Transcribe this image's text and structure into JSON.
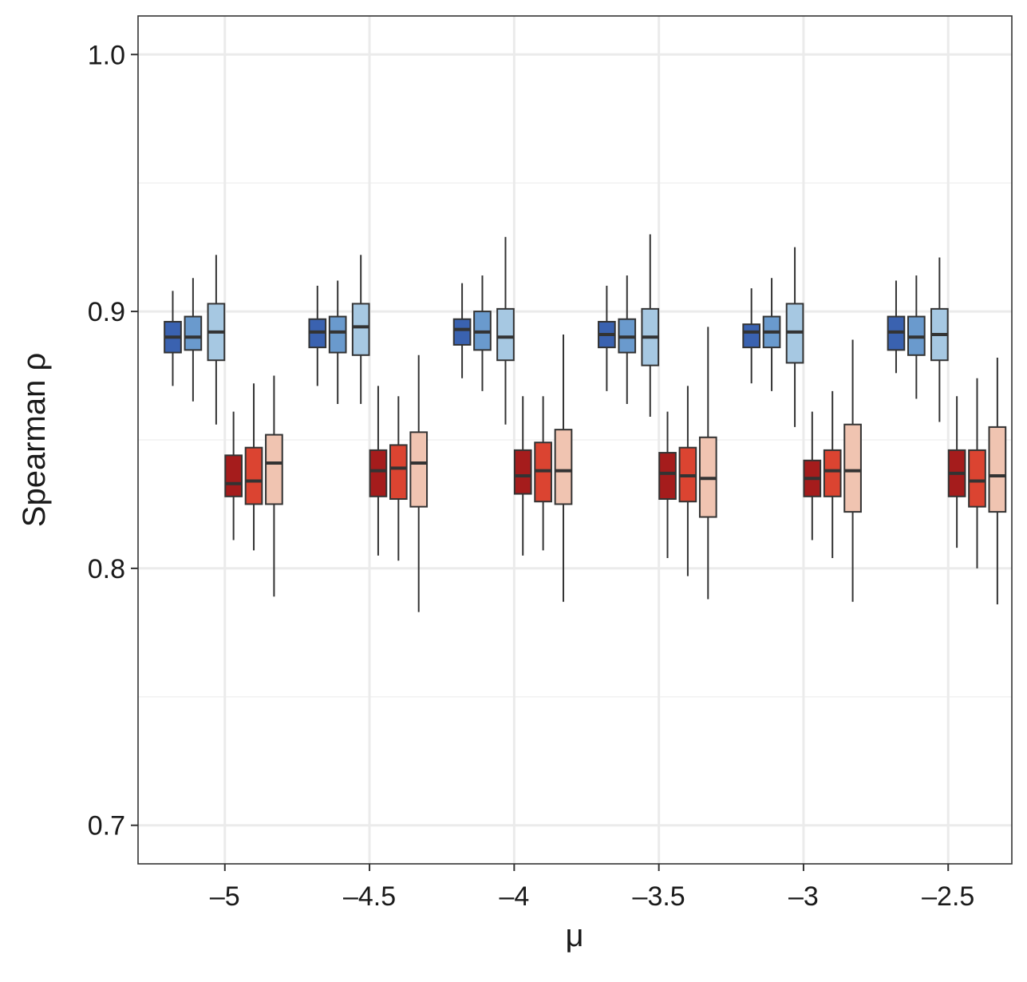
{
  "chart_data": {
    "type": "box",
    "title": "",
    "xlabel": "μ",
    "ylabel": "Spearman ρ",
    "ylim": [
      0.685,
      1.015
    ],
    "xlim": [
      -5.3,
      -2.28
    ],
    "grid": true,
    "legend": "none",
    "x_ticks": [
      -5,
      -4.5,
      -4,
      -3.5,
      -3,
      -2.5
    ],
    "x_tick_labels": [
      "–5",
      "–4.5",
      "–4",
      "–3.5",
      "–3",
      "–2.5"
    ],
    "y_ticks": [
      0.7,
      0.8,
      0.9,
      1.0
    ],
    "y_tick_labels": [
      "0.7",
      "0.8",
      "0.9",
      "1.0"
    ],
    "y_minor_gridlines": [
      0.75,
      0.85,
      0.95
    ],
    "colors": [
      "#3a62b0",
      "#6a9acd",
      "#a6c8e2",
      "#a51c1c",
      "#db4431",
      "#f0c4b1"
    ],
    "box_offsets": [
      -0.18,
      -0.11,
      -0.03,
      0.03,
      0.1,
      0.17
    ],
    "box_width": 0.057,
    "groups": [
      {
        "x": -5,
        "boxes": [
          {
            "whislo": 0.871,
            "q1": 0.884,
            "med": 0.89,
            "q3": 0.896,
            "whishi": 0.908
          },
          {
            "whislo": 0.865,
            "q1": 0.885,
            "med": 0.89,
            "q3": 0.898,
            "whishi": 0.913
          },
          {
            "whislo": 0.856,
            "q1": 0.881,
            "med": 0.892,
            "q3": 0.903,
            "whishi": 0.922
          },
          {
            "whislo": 0.811,
            "q1": 0.828,
            "med": 0.833,
            "q3": 0.844,
            "whishi": 0.861
          },
          {
            "whislo": 0.807,
            "q1": 0.825,
            "med": 0.834,
            "q3": 0.847,
            "whishi": 0.872
          },
          {
            "whislo": 0.789,
            "q1": 0.825,
            "med": 0.841,
            "q3": 0.852,
            "whishi": 0.875
          }
        ]
      },
      {
        "x": -4.5,
        "boxes": [
          {
            "whislo": 0.871,
            "q1": 0.886,
            "med": 0.892,
            "q3": 0.897,
            "whishi": 0.91
          },
          {
            "whislo": 0.864,
            "q1": 0.884,
            "med": 0.892,
            "q3": 0.898,
            "whishi": 0.912
          },
          {
            "whislo": 0.864,
            "q1": 0.883,
            "med": 0.894,
            "q3": 0.903,
            "whishi": 0.922
          },
          {
            "whislo": 0.805,
            "q1": 0.828,
            "med": 0.838,
            "q3": 0.846,
            "whishi": 0.871
          },
          {
            "whislo": 0.803,
            "q1": 0.827,
            "med": 0.839,
            "q3": 0.848,
            "whishi": 0.867
          },
          {
            "whislo": 0.783,
            "q1": 0.824,
            "med": 0.841,
            "q3": 0.853,
            "whishi": 0.883
          }
        ]
      },
      {
        "x": -4,
        "boxes": [
          {
            "whislo": 0.874,
            "q1": 0.887,
            "med": 0.893,
            "q3": 0.897,
            "whishi": 0.911
          },
          {
            "whislo": 0.869,
            "q1": 0.885,
            "med": 0.892,
            "q3": 0.9,
            "whishi": 0.914
          },
          {
            "whislo": 0.856,
            "q1": 0.881,
            "med": 0.89,
            "q3": 0.901,
            "whishi": 0.929
          },
          {
            "whislo": 0.805,
            "q1": 0.829,
            "med": 0.836,
            "q3": 0.846,
            "whishi": 0.867
          },
          {
            "whislo": 0.807,
            "q1": 0.826,
            "med": 0.838,
            "q3": 0.849,
            "whishi": 0.867
          },
          {
            "whislo": 0.787,
            "q1": 0.825,
            "med": 0.838,
            "q3": 0.854,
            "whishi": 0.891
          }
        ]
      },
      {
        "x": -3.5,
        "boxes": [
          {
            "whislo": 0.869,
            "q1": 0.886,
            "med": 0.891,
            "q3": 0.896,
            "whishi": 0.91
          },
          {
            "whislo": 0.864,
            "q1": 0.884,
            "med": 0.89,
            "q3": 0.897,
            "whishi": 0.914
          },
          {
            "whislo": 0.859,
            "q1": 0.879,
            "med": 0.89,
            "q3": 0.901,
            "whishi": 0.93
          },
          {
            "whislo": 0.804,
            "q1": 0.827,
            "med": 0.837,
            "q3": 0.845,
            "whishi": 0.861
          },
          {
            "whislo": 0.797,
            "q1": 0.826,
            "med": 0.836,
            "q3": 0.847,
            "whishi": 0.871
          },
          {
            "whislo": 0.788,
            "q1": 0.82,
            "med": 0.835,
            "q3": 0.851,
            "whishi": 0.894
          }
        ]
      },
      {
        "x": -3,
        "boxes": [
          {
            "whislo": 0.872,
            "q1": 0.886,
            "med": 0.892,
            "q3": 0.895,
            "whishi": 0.909
          },
          {
            "whislo": 0.869,
            "q1": 0.886,
            "med": 0.892,
            "q3": 0.898,
            "whishi": 0.913
          },
          {
            "whislo": 0.855,
            "q1": 0.88,
            "med": 0.892,
            "q3": 0.903,
            "whishi": 0.925
          },
          {
            "whislo": 0.811,
            "q1": 0.828,
            "med": 0.835,
            "q3": 0.842,
            "whishi": 0.861
          },
          {
            "whislo": 0.804,
            "q1": 0.828,
            "med": 0.838,
            "q3": 0.846,
            "whishi": 0.869
          },
          {
            "whislo": 0.787,
            "q1": 0.822,
            "med": 0.838,
            "q3": 0.856,
            "whishi": 0.889
          }
        ]
      },
      {
        "x": -2.5,
        "boxes": [
          {
            "whislo": 0.876,
            "q1": 0.885,
            "med": 0.892,
            "q3": 0.898,
            "whishi": 0.912
          },
          {
            "whislo": 0.866,
            "q1": 0.883,
            "med": 0.89,
            "q3": 0.898,
            "whishi": 0.914
          },
          {
            "whislo": 0.857,
            "q1": 0.881,
            "med": 0.891,
            "q3": 0.901,
            "whishi": 0.921
          },
          {
            "whislo": 0.808,
            "q1": 0.828,
            "med": 0.837,
            "q3": 0.846,
            "whishi": 0.867
          },
          {
            "whislo": 0.8,
            "q1": 0.824,
            "med": 0.834,
            "q3": 0.846,
            "whishi": 0.874
          },
          {
            "whislo": 0.786,
            "q1": 0.822,
            "med": 0.836,
            "q3": 0.855,
            "whishi": 0.882
          }
        ]
      }
    ]
  }
}
